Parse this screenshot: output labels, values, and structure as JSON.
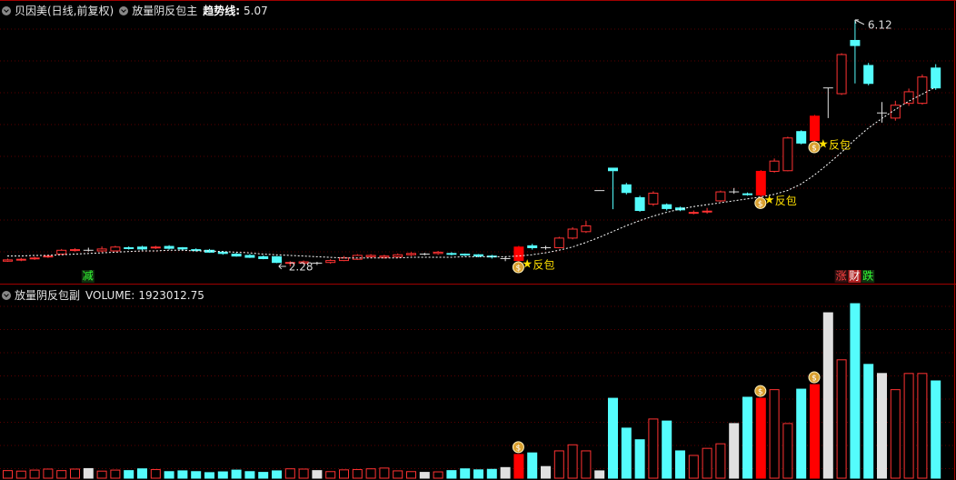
{
  "chart_data": {
    "type": "candlestick",
    "title": "贝因美(日线,前复权)",
    "indicator": "放量阴反包主",
    "ylim": [
      2.01,
      6.43
    ],
    "up_color": "#ff3232",
    "down_color": "#54fcfc",
    "signal_color": "#ff0000",
    "flat_color": "#e0e0e0",
    "open": [
      2.36,
      2.38,
      2.4,
      2.43,
      2.47,
      2.53,
      2.53,
      2.52,
      2.52,
      2.57,
      2.58,
      2.57,
      2.59,
      2.57,
      2.54,
      2.53,
      2.5,
      2.47,
      2.45,
      2.43,
      2.43,
      2.33,
      2.33,
      2.33,
      2.34,
      2.37,
      2.39,
      2.43,
      2.42,
      2.43,
      2.46,
      2.47,
      2.48,
      2.48,
      2.47,
      2.46,
      2.44,
      2.4,
      2.37,
      2.6,
      2.57,
      2.57,
      2.72,
      2.82,
      3.46,
      3.81,
      3.55,
      3.35,
      3.25,
      3.24,
      3.19,
      3.11,
      3.13,
      3.3,
      3.44,
      3.41,
      3.39,
      3.76,
      3.77,
      4.38,
      4.24,
      5.06,
      4.97,
      5.8,
      5.41,
      4.67,
      4.59,
      4.82,
      4.82,
      5.37
    ],
    "high": [
      2.4,
      2.41,
      2.43,
      2.46,
      2.55,
      2.56,
      2.57,
      2.59,
      2.6,
      2.59,
      2.6,
      2.6,
      2.61,
      2.58,
      2.56,
      2.55,
      2.52,
      2.49,
      2.47,
      2.45,
      2.44,
      2.36,
      2.37,
      2.35,
      2.39,
      2.44,
      2.47,
      2.47,
      2.46,
      2.48,
      2.5,
      2.49,
      2.52,
      2.5,
      2.48,
      2.47,
      2.46,
      2.43,
      2.6,
      2.63,
      2.6,
      2.74,
      2.89,
      2.99,
      3.46,
      3.81,
      3.58,
      3.38,
      3.45,
      3.26,
      3.21,
      3.15,
      3.19,
      3.46,
      3.5,
      3.43,
      3.78,
      3.96,
      4.3,
      4.4,
      4.64,
      5.06,
      5.6,
      6.12,
      5.45,
      4.84,
      4.86,
      5.05,
      5.27,
      5.43
    ],
    "low": [
      2.35,
      2.36,
      2.38,
      2.41,
      2.46,
      2.51,
      2.51,
      2.5,
      2.51,
      2.54,
      2.53,
      2.55,
      2.54,
      2.53,
      2.51,
      2.49,
      2.46,
      2.43,
      2.41,
      2.39,
      2.33,
      2.28,
      2.31,
      2.3,
      2.32,
      2.36,
      2.38,
      2.41,
      2.4,
      2.41,
      2.44,
      2.45,
      2.46,
      2.45,
      2.44,
      2.42,
      2.4,
      2.36,
      2.35,
      2.54,
      2.54,
      2.56,
      2.7,
      2.8,
      3.46,
      3.17,
      3.4,
      3.13,
      3.22,
      3.15,
      3.14,
      3.09,
      3.1,
      3.28,
      3.41,
      3.38,
      3.35,
      3.74,
      3.76,
      4.18,
      4.22,
      4.59,
      4.95,
      5.13,
      5.1,
      4.52,
      4.55,
      4.78,
      4.8,
      5.03
    ],
    "close": [
      2.38,
      2.39,
      2.41,
      2.44,
      2.53,
      2.54,
      2.53,
      2.55,
      2.58,
      2.56,
      2.55,
      2.58,
      2.56,
      2.55,
      2.53,
      2.5,
      2.48,
      2.44,
      2.42,
      2.4,
      2.34,
      2.34,
      2.35,
      2.33,
      2.37,
      2.41,
      2.45,
      2.45,
      2.44,
      2.46,
      2.48,
      2.47,
      2.5,
      2.47,
      2.46,
      2.44,
      2.43,
      2.4,
      2.58,
      2.57,
      2.57,
      2.72,
      2.86,
      2.91,
      3.46,
      3.77,
      3.43,
      3.15,
      3.42,
      3.18,
      3.16,
      3.12,
      3.14,
      3.44,
      3.44,
      3.4,
      3.76,
      3.92,
      4.28,
      4.2,
      4.62,
      5.06,
      5.58,
      5.72,
      5.13,
      4.67,
      4.79,
      5.0,
      5.23,
      5.06
    ],
    "trend": {
      "label": "趋势线:",
      "color": "#ffffff",
      "values": [
        2.44,
        2.44,
        2.45,
        2.45,
        2.46,
        2.47,
        2.48,
        2.49,
        2.5,
        2.51,
        2.52,
        2.52,
        2.53,
        2.53,
        2.52,
        2.52,
        2.51,
        2.5,
        2.49,
        2.47,
        2.46,
        2.45,
        2.44,
        2.43,
        2.42,
        2.41,
        2.41,
        2.41,
        2.41,
        2.41,
        2.42,
        2.42,
        2.42,
        2.42,
        2.43,
        2.43,
        2.43,
        2.43,
        2.44,
        2.46,
        2.49,
        2.53,
        2.58,
        2.65,
        2.73,
        2.82,
        2.91,
        2.99,
        3.06,
        3.12,
        3.17,
        3.21,
        3.24,
        3.27,
        3.3,
        3.33,
        3.36,
        3.4,
        3.46,
        3.56,
        3.7,
        3.87,
        4.05,
        4.25,
        4.43,
        4.58,
        4.72,
        4.85,
        4.96,
        5.07
      ]
    },
    "signals": [
      {
        "index": 38,
        "label": "反包"
      },
      {
        "index": 56,
        "label": "反包"
      },
      {
        "index": 60,
        "label": "反包"
      }
    ],
    "events": [
      {
        "index": 6,
        "label": "减",
        "color": "#33ff33",
        "background": "#103010"
      },
      {
        "index": 62,
        "label": "涨",
        "color": "#ff4040",
        "background": "#301010"
      },
      {
        "index": 63,
        "label": "财",
        "color": "#ffffff",
        "background": "#b02020"
      },
      {
        "index": 64,
        "label": "跌",
        "color": "#33ff33",
        "background": "#103010"
      }
    ],
    "volume": {
      "indicator": "放量阴反包副",
      "label": "VOLUME:",
      "ylim": [
        0,
        3810000
      ],
      "values": [
        150000,
        140000,
        160000,
        180000,
        150000,
        180000,
        190000,
        140000,
        160000,
        150000,
        185000,
        170000,
        130000,
        145000,
        130000,
        110000,
        125000,
        160000,
        130000,
        115000,
        145000,
        185000,
        180000,
        150000,
        130000,
        165000,
        170000,
        185000,
        200000,
        145000,
        130000,
        115000,
        125000,
        150000,
        185000,
        165000,
        175000,
        210000,
        470000,
        500000,
        230000,
        540000,
        660000,
        540000,
        145000,
        1580000,
        990000,
        760000,
        1170000,
        1130000,
        540000,
        450000,
        590000,
        680000,
        1080000,
        1600000,
        1580000,
        1750000,
        1080000,
        1760000,
        1850000,
        3270000,
        2340000,
        3450000,
        2250000,
        2070000,
        1750000,
        2070000,
        2070000,
        1923012.75
      ]
    }
  }
}
